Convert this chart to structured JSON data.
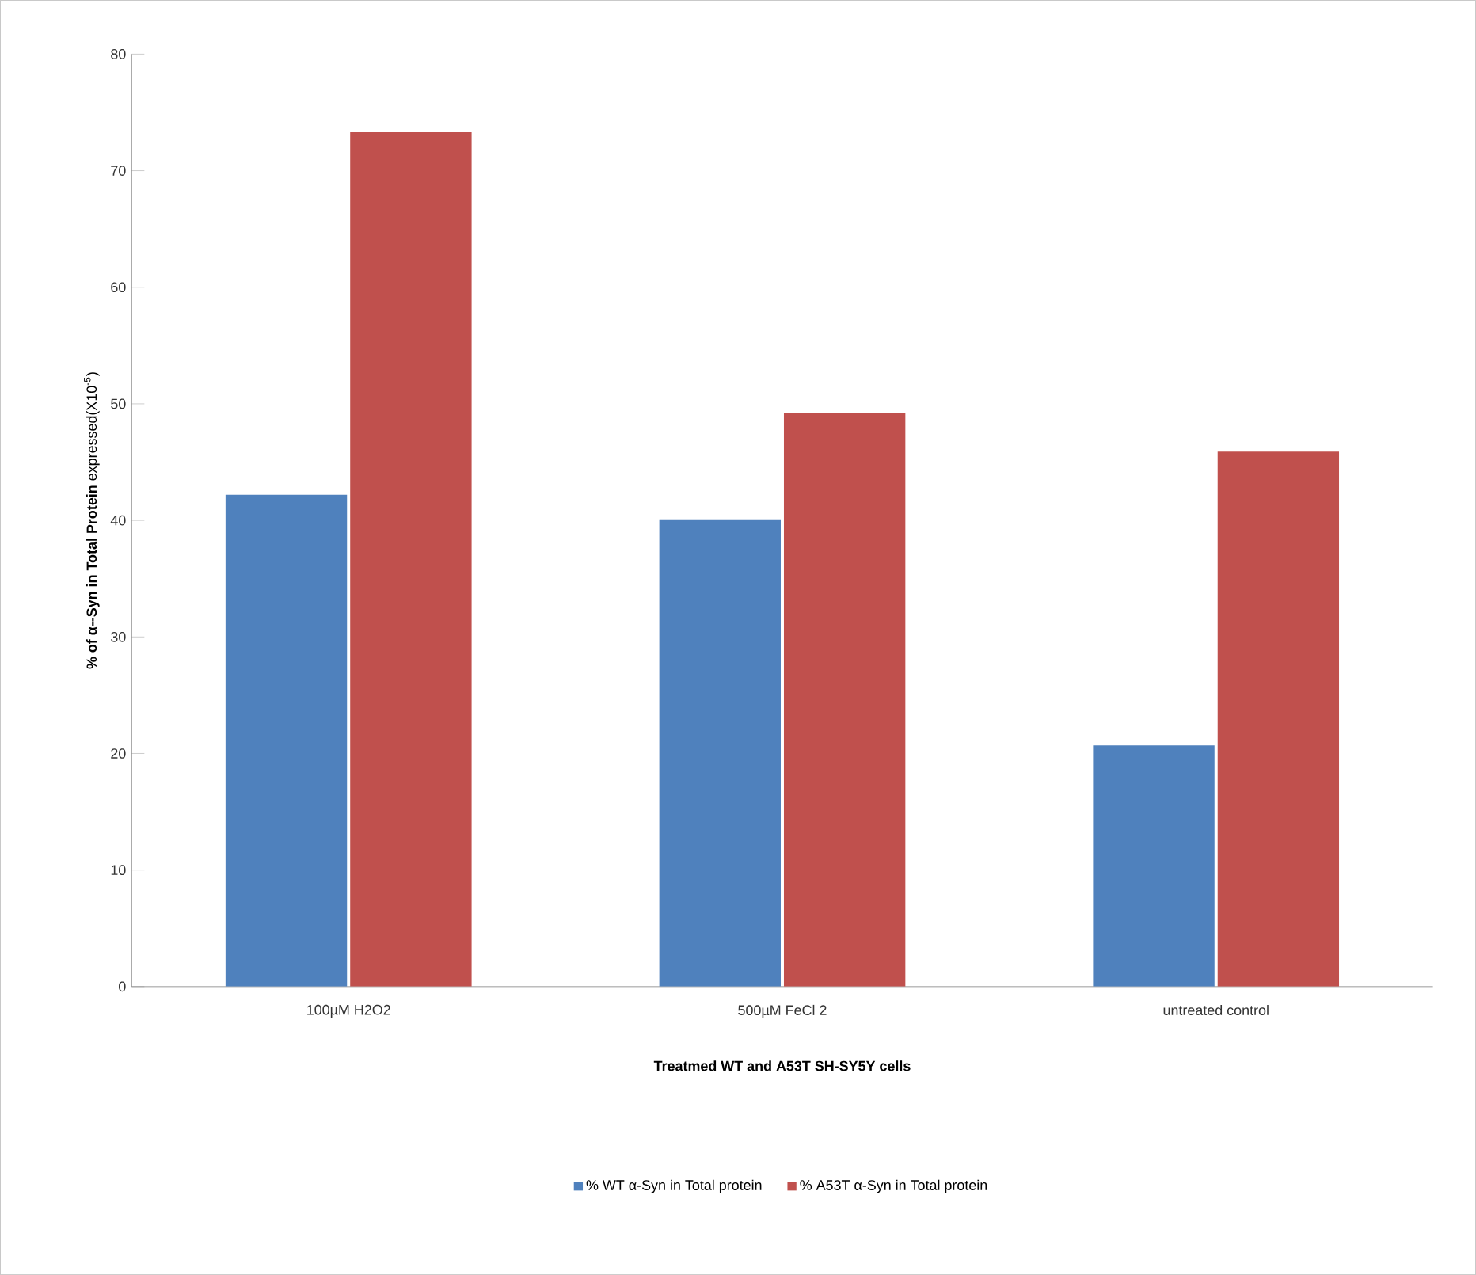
{
  "chart_data": {
    "type": "bar",
    "xlabel": "Treatmed WT and A53T SH-SY5Y cells",
    "ylabel": "**% of α--Syn in Total Protein** expressed(X10$^{-5}$)",
    "categories": [
      "100µM H2O2",
      "500µM FeCl 2",
      "untreated control"
    ],
    "series": [
      {
        "name": "% WT α-Syn in Total protein",
        "color": "#4f81bd",
        "values": [
          42.2,
          40.1,
          20.7
        ]
      },
      {
        "name": "% A53T α-Syn in Total protein",
        "color": "#c0504d",
        "values": [
          73.3,
          49.2,
          45.9
        ]
      }
    ],
    "ylim": [
      0,
      80
    ],
    "yticks": [
      0,
      10,
      20,
      30,
      40,
      50,
      60,
      70,
      80
    ],
    "grid": false,
    "legend": "bottom"
  }
}
